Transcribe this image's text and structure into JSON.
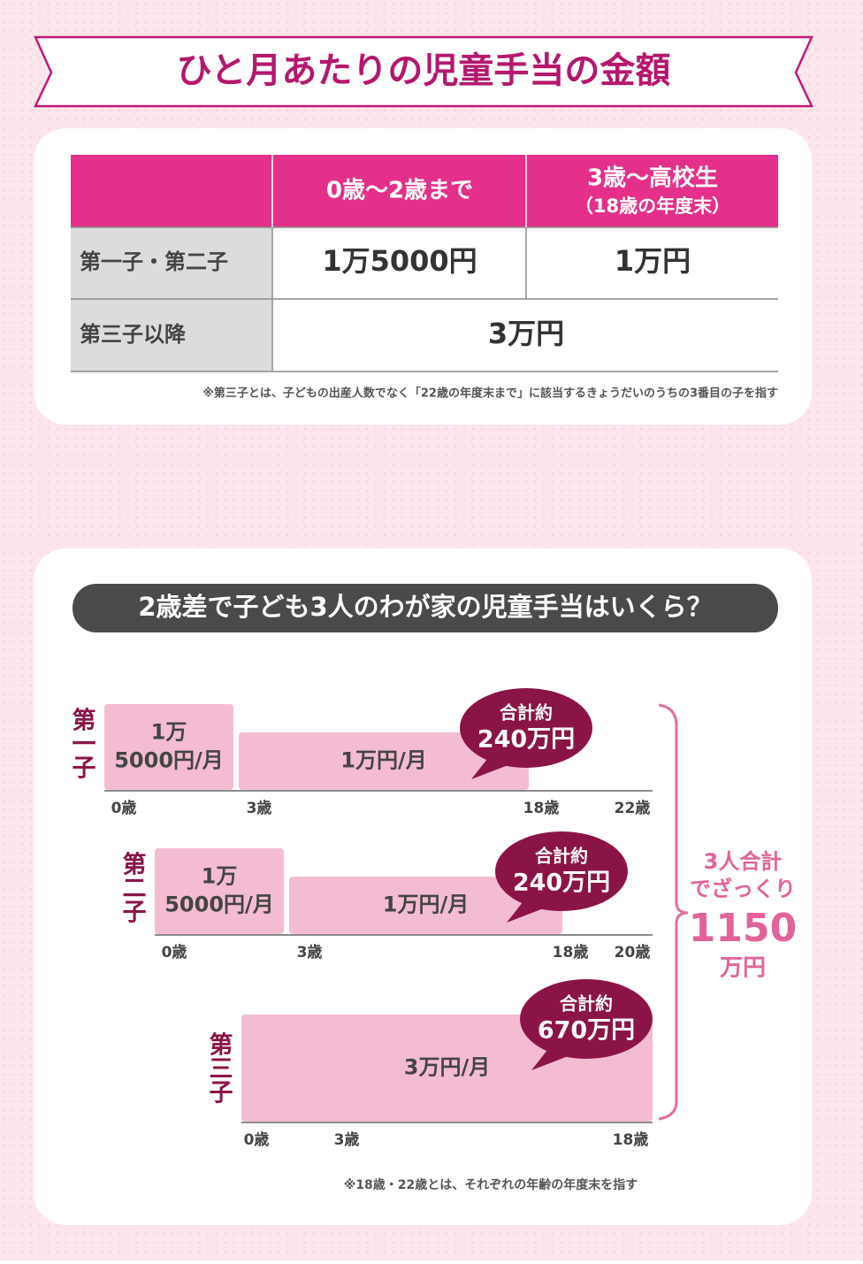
{
  "header": {
    "title": "ひと月あたりの児童手当の金額"
  },
  "table": {
    "header": [
      "0歳～2歳まで",
      "3歳～高校生",
      "（18歳の年度末）"
    ],
    "rows": [
      [
        "第一子・第二子",
        "1万5000円",
        "1万円"
      ],
      [
        "第三子以降",
        "3万円"
      ]
    ],
    "note": "※第三子とは、子どもの出産人数でなく「22歳の年度末まで」に該当するきょうだいのうちの3番目の子を指す"
  },
  "simulation": {
    "title": "2歳差で子ども3人のわが家の児童手当はいくら？",
    "children": [
      {
        "label": "第一子",
        "segments": [
          [
            "1万",
            "5000円/月"
          ],
          [
            "1万円/月"
          ]
        ],
        "ages": [
          "0歳",
          "3歳",
          "18歳",
          "22歳"
        ],
        "total": [
          "合計約",
          "240万円"
        ]
      },
      {
        "label": "第二子",
        "segments": [
          [
            "1万",
            "5000円/月"
          ],
          [
            "1万円/月"
          ]
        ],
        "ages": [
          "0歳",
          "3歳",
          "18歳",
          "20歳"
        ],
        "total": [
          "合計約",
          "240万円"
        ]
      },
      {
        "label": "第三子",
        "segments": [
          [
            "3万円/月"
          ]
        ],
        "ages": [
          "0歳",
          "3歳",
          "18歳"
        ],
        "total": [
          "合計約",
          "670万円"
        ]
      }
    ],
    "summary": [
      "3人合計",
      "でざっくり",
      "1150",
      "万円"
    ],
    "note": "※18歳・22歳とは、それぞれの年齢の年度末を指す"
  }
}
